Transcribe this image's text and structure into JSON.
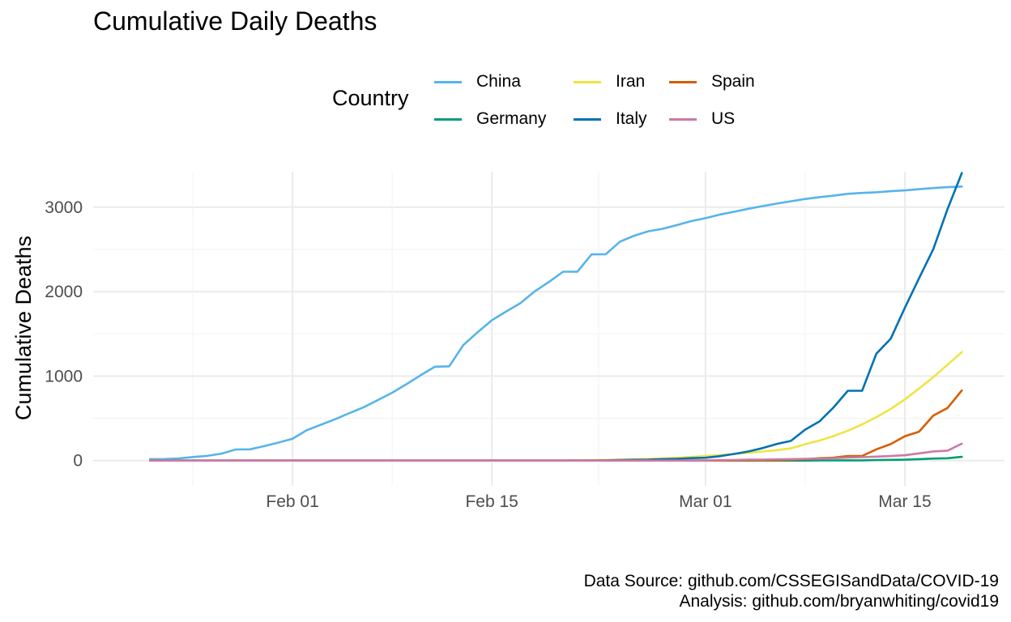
{
  "title": "Cumulative Daily Deaths",
  "legend": {
    "title": "Country",
    "items": [
      {
        "name": "China",
        "color": "#56B4E9"
      },
      {
        "name": "Germany",
        "color": "#009E73"
      },
      {
        "name": "Iran",
        "color": "#F0E442"
      },
      {
        "name": "Italy",
        "color": "#0072B2"
      },
      {
        "name": "Spain",
        "color": "#D55E00"
      },
      {
        "name": "US",
        "color": "#CC79A7"
      }
    ]
  },
  "caption": {
    "line1": "Data Source: github.com/CSSEGISandData/COVID-19",
    "line2": "Analysis: github.com/bryanwhiting/covid19"
  },
  "chart_data": {
    "type": "line",
    "title": "Cumulative Daily Deaths",
    "xlabel": "",
    "ylabel": "Cumulative Deaths",
    "x_type": "date",
    "xlim": [
      "2020-01-18",
      "2020-03-22"
    ],
    "ylim": [
      -300,
      3420
    ],
    "x_ticks": [
      {
        "date": "2020-02-01",
        "label": "Feb 01"
      },
      {
        "date": "2020-02-15",
        "label": "Feb 15"
      },
      {
        "date": "2020-03-01",
        "label": "Mar 01"
      },
      {
        "date": "2020-03-15",
        "label": "Mar 15"
      }
    ],
    "y_ticks": [
      0,
      1000,
      2000,
      3000
    ],
    "grid": true,
    "legend_position": "top",
    "x": [
      "2020-01-22",
      "2020-01-23",
      "2020-01-24",
      "2020-01-25",
      "2020-01-26",
      "2020-01-27",
      "2020-01-28",
      "2020-01-29",
      "2020-01-30",
      "2020-01-31",
      "2020-02-01",
      "2020-02-02",
      "2020-02-03",
      "2020-02-04",
      "2020-02-05",
      "2020-02-06",
      "2020-02-07",
      "2020-02-08",
      "2020-02-09",
      "2020-02-10",
      "2020-02-11",
      "2020-02-12",
      "2020-02-13",
      "2020-02-14",
      "2020-02-15",
      "2020-02-16",
      "2020-02-17",
      "2020-02-18",
      "2020-02-19",
      "2020-02-20",
      "2020-02-21",
      "2020-02-22",
      "2020-02-23",
      "2020-02-24",
      "2020-02-25",
      "2020-02-26",
      "2020-02-27",
      "2020-02-28",
      "2020-02-29",
      "2020-03-01",
      "2020-03-02",
      "2020-03-03",
      "2020-03-04",
      "2020-03-05",
      "2020-03-06",
      "2020-03-07",
      "2020-03-08",
      "2020-03-09",
      "2020-03-10",
      "2020-03-11",
      "2020-03-12",
      "2020-03-13",
      "2020-03-14",
      "2020-03-15",
      "2020-03-16",
      "2020-03-17",
      "2020-03-18",
      "2020-03-19"
    ],
    "series": [
      {
        "name": "China",
        "color": "#56B4E9",
        "values": [
          17,
          18,
          26,
          42,
          56,
          82,
          131,
          133,
          171,
          213,
          259,
          361,
          425,
          490,
          562,
          632,
          717,
          804,
          904,
          1011,
          1111,
          1116,
          1368,
          1520,
          1662,
          1765,
          1863,
          2002,
          2114,
          2236,
          2236,
          2441,
          2443,
          2593,
          2663,
          2715,
          2744,
          2788,
          2835,
          2870,
          2912,
          2945,
          2981,
          3013,
          3042,
          3070,
          3097,
          3119,
          3136,
          3158,
          3169,
          3176,
          3189,
          3199,
          3213,
          3226,
          3237,
          3245
        ]
      },
      {
        "name": "Germany",
        "color": "#009E73",
        "values": [
          0,
          0,
          0,
          0,
          0,
          0,
          0,
          0,
          0,
          0,
          0,
          0,
          0,
          0,
          0,
          0,
          0,
          0,
          0,
          0,
          0,
          0,
          0,
          0,
          0,
          0,
          0,
          0,
          0,
          0,
          0,
          0,
          0,
          0,
          0,
          0,
          0,
          0,
          0,
          0,
          0,
          0,
          0,
          0,
          0,
          0,
          0,
          2,
          2,
          3,
          3,
          7,
          9,
          11,
          17,
          24,
          28,
          44
        ]
      },
      {
        "name": "Iran",
        "color": "#F0E442",
        "values": [
          0,
          0,
          0,
          0,
          0,
          0,
          0,
          0,
          0,
          0,
          0,
          0,
          0,
          0,
          0,
          0,
          0,
          0,
          0,
          0,
          0,
          0,
          0,
          0,
          0,
          0,
          0,
          0,
          2,
          2,
          4,
          5,
          8,
          12,
          16,
          19,
          26,
          34,
          43,
          54,
          66,
          77,
          92,
          107,
          124,
          145,
          194,
          237,
          291,
          354,
          429,
          514,
          611,
          724,
          853,
          988,
          1135,
          1284
        ]
      },
      {
        "name": "Italy",
        "color": "#0072B2",
        "values": [
          0,
          0,
          0,
          0,
          0,
          0,
          0,
          0,
          0,
          0,
          0,
          0,
          0,
          0,
          0,
          0,
          0,
          0,
          0,
          0,
          0,
          0,
          0,
          0,
          0,
          0,
          0,
          0,
          0,
          0,
          1,
          2,
          3,
          7,
          10,
          12,
          17,
          21,
          29,
          34,
          52,
          79,
          107,
          148,
          197,
          233,
          366,
          463,
          631,
          827,
          827,
          1266,
          1441,
          1809,
          2158,
          2503,
          2978,
          3405
        ]
      },
      {
        "name": "Spain",
        "color": "#D55E00",
        "values": [
          0,
          0,
          0,
          0,
          0,
          0,
          0,
          0,
          0,
          0,
          0,
          0,
          0,
          0,
          0,
          0,
          0,
          0,
          0,
          0,
          0,
          0,
          0,
          0,
          0,
          0,
          0,
          0,
          0,
          0,
          0,
          0,
          0,
          0,
          0,
          0,
          0,
          0,
          0,
          0,
          0,
          1,
          2,
          3,
          5,
          10,
          17,
          28,
          35,
          54,
          55,
          133,
          195,
          289,
          342,
          533,
          623,
          830
        ]
      },
      {
        "name": "US",
        "color": "#CC79A7",
        "values": [
          0,
          0,
          0,
          0,
          0,
          0,
          0,
          0,
          0,
          0,
          0,
          0,
          0,
          0,
          0,
          0,
          0,
          0,
          0,
          0,
          0,
          0,
          0,
          0,
          0,
          0,
          0,
          0,
          0,
          0,
          0,
          0,
          0,
          0,
          0,
          0,
          0,
          0,
          1,
          1,
          6,
          7,
          11,
          12,
          14,
          17,
          21,
          22,
          28,
          36,
          40,
          47,
          54,
          63,
          85,
          108,
          118,
          200
        ]
      }
    ]
  }
}
